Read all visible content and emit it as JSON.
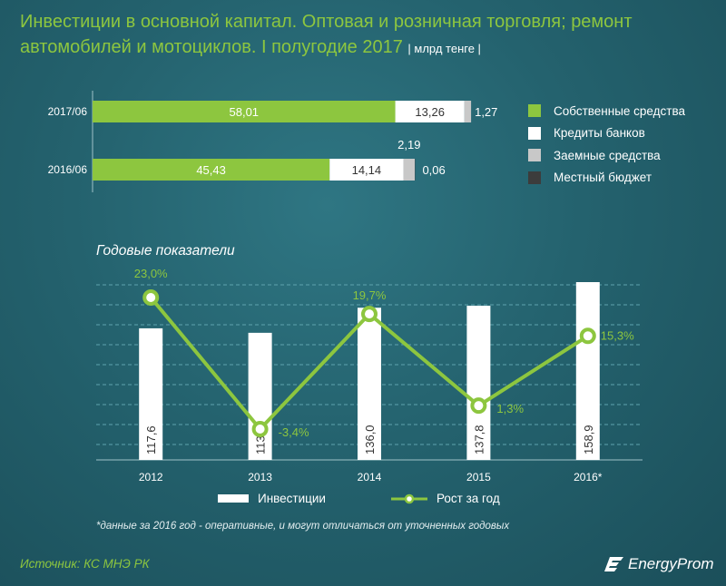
{
  "header": {
    "title_line1": "Инвестиции в основной капитал. Оптовая и розничная торговля; ремонт",
    "title_line2": "автомобилей и мотоциклов. I полугодие 2017",
    "unit": "| млрд тенге |"
  },
  "colors": {
    "own": "#8dc63f",
    "bank": "#ffffff",
    "loan": "#c8c8c8",
    "local": "#3c3c3c",
    "growth_line": "#8dc63f",
    "bars": "#ffffff"
  },
  "legend": [
    {
      "label": "Собственные средства",
      "color": "#8dc63f"
    },
    {
      "label": "Кредиты банков",
      "color": "#ffffff"
    },
    {
      "label": "Заемные средства",
      "color": "#c8c8c8"
    },
    {
      "label": "Местный бюджет",
      "color": "#3c3c3c"
    }
  ],
  "section_title": "Годовые показатели",
  "chart_data": [
    {
      "type": "bar",
      "orientation": "horizontal",
      "stacked": true,
      "categories": [
        "2017/06",
        "2016/06"
      ],
      "series": [
        {
          "name": "Собственные средства",
          "values": [
            58.01,
            45.43
          ],
          "labels": [
            "58,01",
            "45,43"
          ]
        },
        {
          "name": "Кредиты банков",
          "values": [
            13.26,
            14.14
          ],
          "labels": [
            "13,26",
            "14,14"
          ]
        },
        {
          "name": "Заемные средства",
          "values": [
            1.27,
            2.19
          ],
          "labels": [
            "1,27",
            "2,19"
          ]
        },
        {
          "name": "Местный бюджет",
          "values": [
            0,
            0.06
          ],
          "labels": [
            "",
            "0,06"
          ]
        }
      ],
      "legend_position": "right",
      "grid": false
    },
    {
      "type": "bar",
      "title": "Годовые показатели",
      "categories": [
        "2012",
        "2013",
        "2014",
        "2015",
        "2016*"
      ],
      "series": [
        {
          "name": "Инвестиции",
          "type": "bar",
          "values": [
            117.6,
            113.6,
            136.0,
            137.8,
            158.9
          ],
          "labels": [
            "117,6",
            "113,6",
            "136,0",
            "137,8",
            "158,9"
          ]
        },
        {
          "name": "Рост за год",
          "type": "line",
          "unit": "%",
          "values": [
            23.0,
            -3.4,
            19.7,
            1.3,
            15.3
          ],
          "labels": [
            "23,0%",
            "-3,4%",
            "19,7%",
            "1,3%",
            "15,3%"
          ]
        }
      ],
      "ylim": [
        0,
        180
      ],
      "y2lim": [
        -10,
        30
      ],
      "grid": true,
      "legend_position": "bottom"
    }
  ],
  "legend2": {
    "bar_label": "Инвестиции",
    "line_label": "Рост за год"
  },
  "footnote": "*данные за 2016 год - оперативные, и могут отличаться от уточненных годовых",
  "source": "Источник: КС МНЭ РК",
  "brand": "EnergyProm"
}
